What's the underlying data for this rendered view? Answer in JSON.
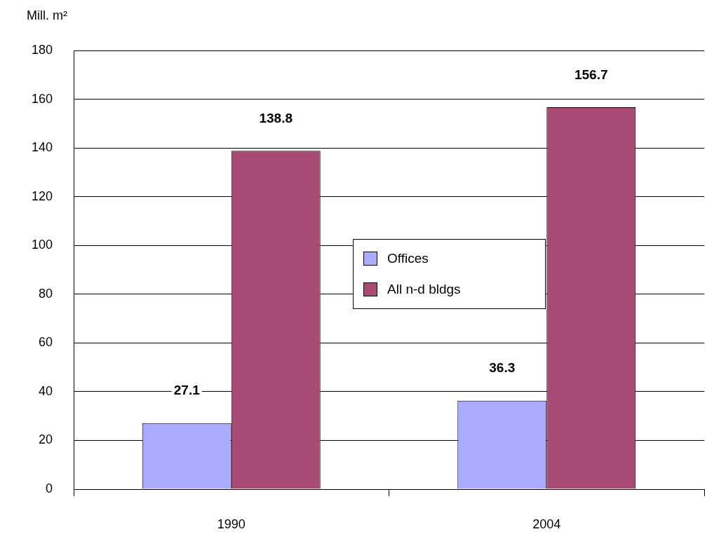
{
  "chart_data": {
    "type": "bar",
    "ylabel": "Mill. m²",
    "categories": [
      "1990",
      "2004"
    ],
    "series": [
      {
        "name": "Offices",
        "color": "#aaaaff",
        "values": [
          27.1,
          36.3
        ]
      },
      {
        "name": "All n-d bldgs",
        "color": "#a94a75",
        "values": [
          138.8,
          156.7
        ]
      }
    ],
    "ylim": [
      0,
      180
    ],
    "yticks": [
      0,
      20,
      40,
      60,
      80,
      100,
      120,
      140,
      160,
      180
    ],
    "grid": "y",
    "legend": "center",
    "data_labels": true
  }
}
